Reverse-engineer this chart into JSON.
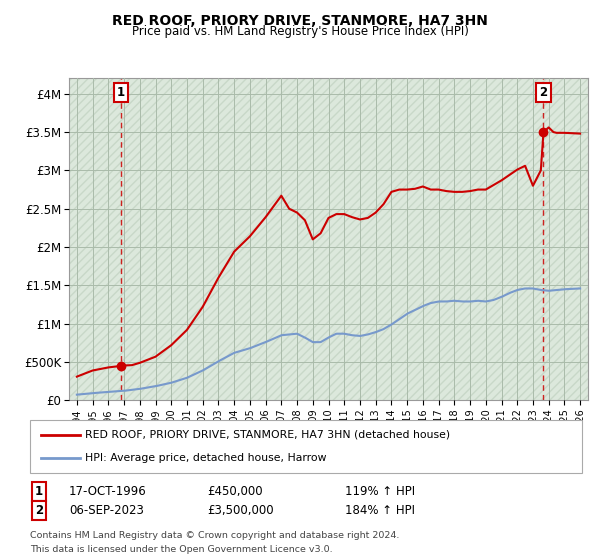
{
  "title": "RED ROOF, PRIORY DRIVE, STANMORE, HA7 3HN",
  "subtitle": "Price paid vs. HM Land Registry's House Price Index (HPI)",
  "ylabel_ticks": [
    "£0",
    "£500K",
    "£1M",
    "£1.5M",
    "£2M",
    "£2.5M",
    "£3M",
    "£3.5M",
    "£4M"
  ],
  "ylabel_values": [
    0,
    500000,
    1000000,
    1500000,
    2000000,
    2500000,
    3000000,
    3500000,
    4000000
  ],
  "ylim": [
    0,
    4200000
  ],
  "xlim_start": 1993.5,
  "xlim_end": 2026.5,
  "grid_color": "#bbccbb",
  "hatch_color": "#d0d8d0",
  "sale1_x": 1996.79,
  "sale1_y": 450000,
  "sale1_label": "1",
  "sale1_date": "17-OCT-1996",
  "sale1_price": "£450,000",
  "sale1_hpi": "119% ↑ HPI",
  "sale2_x": 2023.67,
  "sale2_y": 3500000,
  "sale2_label": "2",
  "sale2_date": "06-SEP-2023",
  "sale2_price": "£3,500,000",
  "sale2_hpi": "184% ↑ HPI",
  "property_color": "#cc0000",
  "hpi_color": "#7799cc",
  "legend_property": "RED ROOF, PRIORY DRIVE, STANMORE, HA7 3HN (detached house)",
  "legend_hpi": "HPI: Average price, detached house, Harrow",
  "footnote1": "Contains HM Land Registry data © Crown copyright and database right 2024.",
  "footnote2": "This data is licensed under the Open Government Licence v3.0."
}
